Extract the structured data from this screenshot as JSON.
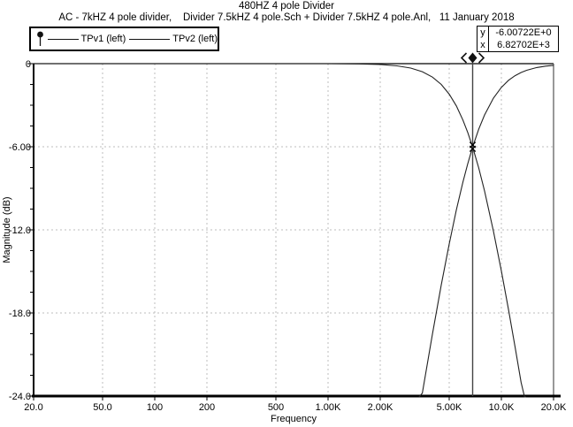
{
  "header": {
    "title": "480HZ 4 pole Divider",
    "subtitle": "AC - 7kHZ 4 pole divider,    Divider 7.5kHZ 4 pole.Sch + Divider 7.5kHZ 4 pole.Anl,   11 January 2018"
  },
  "legend": {
    "series": [
      {
        "label": "TPv1 (left)"
      },
      {
        "label": "TPv2 (left)"
      }
    ],
    "pin_icon": "cursor-pin-icon"
  },
  "cursor_readout": {
    "rows": [
      {
        "label": "y",
        "value": "-6.00722E+0"
      },
      {
        "label": "x",
        "value": "6.82702E+3"
      }
    ]
  },
  "colors": {
    "curve": "#222222",
    "grid": "#bdbdbd",
    "cursor_line": "#444444",
    "axis": "#000000"
  },
  "chart_data": {
    "type": "line",
    "title": "480HZ 4 pole Divider",
    "xlabel": "Frequency",
    "ylabel": "Magnitude  (dB)",
    "x_scale": "log",
    "xlim": [
      20,
      20000
    ],
    "ylim": [
      -24,
      0
    ],
    "grid": true,
    "legend_position": "top-left",
    "x_ticks": [
      {
        "f": 20,
        "label": "20.0"
      },
      {
        "f": 50,
        "label": "50.0"
      },
      {
        "f": 100,
        "label": "100"
      },
      {
        "f": 200,
        "label": "200"
      },
      {
        "f": 500,
        "label": "500"
      },
      {
        "f": 1000,
        "label": "1.00K"
      },
      {
        "f": 2000,
        "label": "2.00K"
      },
      {
        "f": 5000,
        "label": "5.00K"
      },
      {
        "f": 10000,
        "label": "10.0K"
      },
      {
        "f": 20000,
        "label": "20.0K"
      }
    ],
    "y_ticks": [
      {
        "db": 0,
        "label": "0"
      },
      {
        "db": -6,
        "label": "-6.00"
      },
      {
        "db": -12,
        "label": "-12.0"
      },
      {
        "db": -18,
        "label": "-18.0"
      },
      {
        "db": -24,
        "label": "-24.0"
      }
    ],
    "y_minor_step": 1.5,
    "cursor": {
      "x": 6827.02,
      "y": -6.00722
    },
    "series": [
      {
        "name": "TPv1",
        "points": [
          [
            20,
            0
          ],
          [
            50,
            0
          ],
          [
            100,
            0
          ],
          [
            200,
            0
          ],
          [
            300,
            0
          ],
          [
            500,
            0
          ],
          [
            700,
            0
          ],
          [
            1000,
            0
          ],
          [
            1500,
            -0.02
          ],
          [
            2000,
            -0.06
          ],
          [
            2500,
            -0.16
          ],
          [
            3000,
            -0.32
          ],
          [
            3500,
            -0.58
          ],
          [
            4000,
            -0.97
          ],
          [
            4500,
            -1.5
          ],
          [
            5000,
            -2.2
          ],
          [
            5500,
            -3.05
          ],
          [
            6000,
            -4.07
          ],
          [
            6400,
            -4.97
          ],
          [
            6827,
            -6.02
          ],
          [
            7400,
            -7.53
          ],
          [
            8000,
            -9.2
          ],
          [
            9000,
            -12.09
          ],
          [
            10000,
            -14.97
          ],
          [
            11000,
            -17.77
          ],
          [
            12000,
            -20.46
          ],
          [
            13000,
            -23.01
          ],
          [
            13600,
            -24.47
          ],
          [
            13900,
            -25.2
          ]
        ]
      },
      {
        "name": "TPv2",
        "points": [
          [
            3350,
            -25.2
          ],
          [
            3500,
            -23.79
          ],
          [
            4000,
            -19.54
          ],
          [
            4500,
            -15.98
          ],
          [
            5000,
            -13.02
          ],
          [
            5500,
            -10.56
          ],
          [
            6000,
            -8.55
          ],
          [
            6400,
            -7.22
          ],
          [
            6827,
            -6.02
          ],
          [
            7400,
            -4.73
          ],
          [
            8000,
            -3.7
          ],
          [
            9000,
            -2.49
          ],
          [
            10000,
            -1.71
          ],
          [
            11000,
            -1.2
          ],
          [
            12000,
            -0.87
          ],
          [
            13000,
            -0.64
          ],
          [
            14000,
            -0.48
          ],
          [
            16000,
            -0.28
          ],
          [
            18000,
            -0.18
          ],
          [
            20000,
            -0.12
          ]
        ]
      }
    ]
  }
}
